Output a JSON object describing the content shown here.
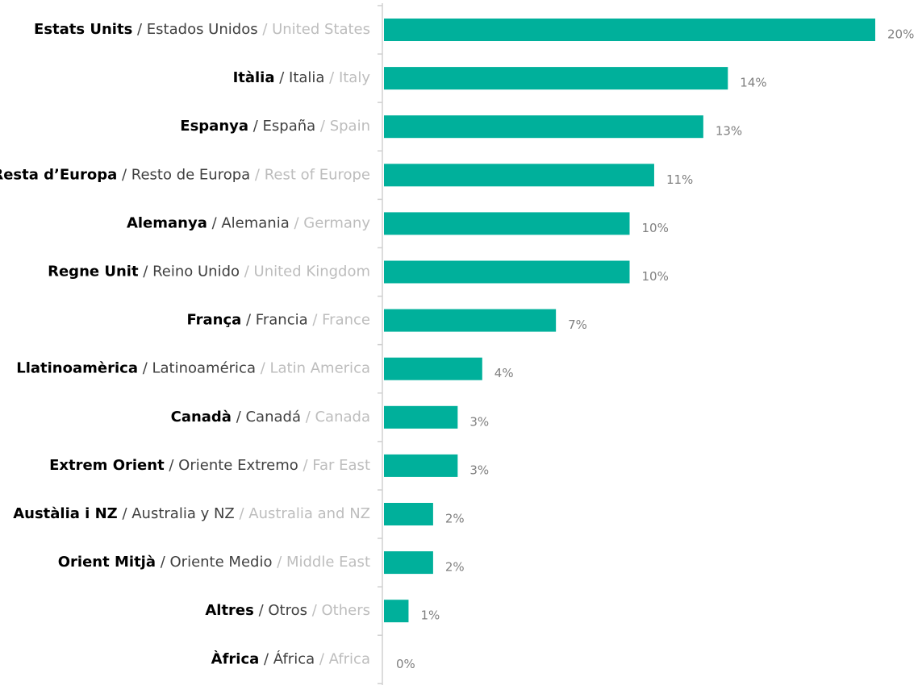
{
  "chart_data": {
    "type": "bar",
    "orientation": "horizontal",
    "categories": [
      "Estats Units / Estados Unidos / United States",
      "Itàlia / Italia / Italy",
      "Espanya / España / Spain",
      "Resta d’Europa / Resto de Europa / Rest of Europe",
      "Alemanya / Alemania / Germany",
      "Regne Unit / Reino Unido / United Kingdom",
      "França / Francia / France",
      "Llatinoamèrica / Latinoamérica / Latin America",
      "Canadà / Canadá / Canada",
      "Extrem Orient / Oriente Extremo / Far East",
      "Austàlia i NZ / Australia y NZ / Australia and NZ",
      "Orient Mitjà / Oriente Medio / Middle East",
      "Altres / Otros / Others",
      "Àfrica / África / Africa"
    ],
    "values": [
      20,
      14,
      13,
      11,
      10,
      10,
      7,
      4,
      3,
      3,
      2,
      2,
      1,
      0
    ],
    "value_labels": [
      "20%",
      "14%",
      "13%",
      "11%",
      "10%",
      "10%",
      "7%",
      "4%",
      "3%",
      "3%",
      "2%",
      "2%",
      "1%",
      "0%"
    ],
    "color": "#00b09b"
  }
}
